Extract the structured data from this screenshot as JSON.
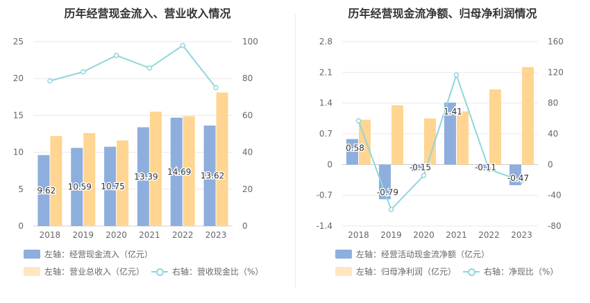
{
  "left": {
    "title": "历年经营现金流入、营业收入情况",
    "chart_data": {
      "type": "bar",
      "categories": [
        "2018",
        "2019",
        "2020",
        "2021",
        "2022",
        "2023"
      ],
      "series": [
        {
          "name": "左轴：经营现金流入（亿元）",
          "axis": "left",
          "kind": "bar",
          "color": "#8eaedd",
          "values": [
            9.62,
            10.59,
            10.75,
            13.39,
            14.69,
            13.62
          ],
          "labels": [
            "9.62",
            "10.59",
            "10.75",
            "13.39",
            "14.69",
            "13.62"
          ]
        },
        {
          "name": "左轴：营业总收入（亿元）",
          "axis": "left",
          "kind": "bar",
          "color": "#ffd591",
          "values": [
            12.2,
            12.6,
            11.6,
            15.5,
            14.9,
            18.1
          ]
        },
        {
          "name": "右轴：营收现金比（%）",
          "axis": "right",
          "kind": "line",
          "color": "#8fd6dc",
          "values": [
            78.7,
            83.6,
            92.5,
            85.7,
            97.9,
            75.0
          ]
        }
      ],
      "left_axis": {
        "min": 0,
        "max": 25,
        "ticks": [
          "0",
          "5",
          "10",
          "15",
          "20",
          "25"
        ]
      },
      "right_axis": {
        "min": 0,
        "max": 100,
        "ticks": [
          "0",
          "20",
          "40",
          "60",
          "80",
          "100"
        ]
      },
      "grid": true,
      "legend_position": "bottom"
    }
  },
  "right": {
    "title": "历年经营现金流净额、归母净利润情况",
    "chart_data": {
      "type": "bar",
      "categories": [
        "2018",
        "2019",
        "2020",
        "2021",
        "2022",
        "2023"
      ],
      "series": [
        {
          "name": "左轴：经营活动现金流净额（亿元）",
          "axis": "left",
          "kind": "bar",
          "color": "#8eaedd",
          "values": [
            0.58,
            -0.79,
            -0.15,
            1.41,
            -0.11,
            -0.47
          ],
          "labels": [
            "0.58",
            "-0.79",
            "-0.15",
            "1.41",
            "-0.11",
            "-0.47"
          ]
        },
        {
          "name": "左轴：归母净利润（亿元）",
          "axis": "left",
          "kind": "bar",
          "color": "#ffd591",
          "values": [
            1.02,
            1.35,
            1.05,
            1.21,
            1.71,
            2.22
          ]
        },
        {
          "name": "右轴：净现比（%）",
          "axis": "right",
          "kind": "line",
          "color": "#8fd6dc",
          "values": [
            56.9,
            -58.5,
            -14.3,
            116.5,
            -6.4,
            -21.2
          ]
        }
      ],
      "left_axis": {
        "min": -1.4,
        "max": 2.8,
        "ticks": [
          "-1.4",
          "-0.7",
          "0",
          "0.7",
          "1.4",
          "2.1",
          "2.8"
        ]
      },
      "right_axis": {
        "min": -80,
        "max": 160,
        "ticks": [
          "-80",
          "-40",
          "0",
          "40",
          "80",
          "120",
          "160"
        ]
      },
      "grid": true,
      "legend_position": "bottom"
    }
  }
}
